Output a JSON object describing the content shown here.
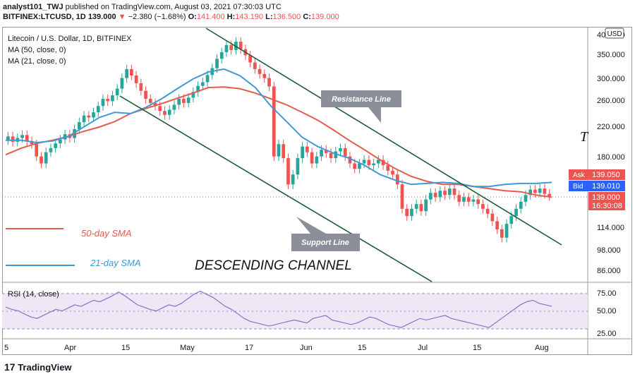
{
  "header": {
    "line1_author": "analyst101_TWJ",
    "line1_text": " published on TradingView.com, August 03, 2021 07:30:03 UTC",
    "symbol": "BITFINEX:LTCUSD, 1D",
    "last": "139.000",
    "change": "−2.380 (−1.68%)",
    "o": "141.400",
    "h": "143.190",
    "l": "136.500",
    "c": "139.000"
  },
  "legend": {
    "title": "Litecoin / U.S. Dollar, 1D, BITFINEX",
    "ma50": "MA (50, close, 0)",
    "ma21": "MA (21, close, 0)"
  },
  "annotations": {
    "resistance": "Resistance Line",
    "support": "Support Line",
    "channel": "DESCENDING CHANNEL",
    "sma50": "50-day SMA",
    "sma21": "21-day SMA",
    "stray": "T"
  },
  "price_axis": {
    "currency": "USD",
    "ticks": [
      "400.000",
      "350.000",
      "300.000",
      "260.000",
      "220.000",
      "180.000",
      "114.000",
      "98.000",
      "86.000"
    ],
    "ask_label": "Ask",
    "ask": "139.050",
    "bid_label": "Bid",
    "bid": "139.010",
    "last": "139.000",
    "countdown": "16:30:08"
  },
  "rsi": {
    "label": "RSI (14, close)",
    "ticks": [
      "75.00",
      "50.00",
      "25.00"
    ]
  },
  "time_axis": [
    "5",
    "Apr",
    "15",
    "May",
    "17",
    "Jun",
    "15",
    "Jul",
    "15",
    "Aug"
  ],
  "footer": {
    "brand": "TradingView"
  },
  "colors": {
    "up": "#26a69a",
    "down": "#ef5350",
    "ma50": "#e55a4e",
    "ma21": "#3d9ad9",
    "channel": "#1e5c3a",
    "rsi": "#8e6fc9",
    "rsi_band": "#ede7f6"
  },
  "chart_data": [
    {
      "type": "candlestick",
      "title": "Litecoin / U.S. Dollar, 1D, BITFINEX",
      "ylim": [
        80,
        400
      ],
      "x_labels": [
        "5",
        "Apr",
        "15",
        "May",
        "17",
        "Jun",
        "15",
        "Jul",
        "15",
        "Aug"
      ],
      "series": [
        {
          "name": "MA (50, close, 0)",
          "values": [
            182,
            190,
            196,
            200,
            205,
            212,
            218,
            226,
            238,
            246,
            254,
            263,
            272,
            282,
            283,
            280,
            272,
            262,
            252,
            240,
            228,
            214,
            200,
            188,
            176,
            166,
            158,
            153,
            150,
            150,
            148,
            146,
            144,
            143,
            140,
            138
          ]
        },
        {
          "name": "MA (21, close, 0)",
          "values": [
            200,
            200,
            197,
            199,
            205,
            218,
            232,
            240,
            238,
            248,
            262,
            280,
            298,
            312,
            318,
            305,
            282,
            250,
            226,
            204,
            192,
            184,
            178,
            170,
            160,
            154,
            150,
            151,
            152,
            151,
            148,
            148,
            150,
            151,
            151,
            152
          ]
        }
      ],
      "candles": [
        {
          "o": 200,
          "c": 205
        },
        {
          "o": 205,
          "c": 198
        },
        {
          "o": 198,
          "c": 203
        },
        {
          "o": 203,
          "c": 207
        },
        {
          "o": 207,
          "c": 199
        },
        {
          "o": 199,
          "c": 195
        },
        {
          "o": 195,
          "c": 180
        },
        {
          "o": 180,
          "c": 172
        },
        {
          "o": 172,
          "c": 185
        },
        {
          "o": 185,
          "c": 190
        },
        {
          "o": 190,
          "c": 196
        },
        {
          "o": 196,
          "c": 201
        },
        {
          "o": 201,
          "c": 208
        },
        {
          "o": 208,
          "c": 203
        },
        {
          "o": 203,
          "c": 215
        },
        {
          "o": 215,
          "c": 225
        },
        {
          "o": 225,
          "c": 235
        },
        {
          "o": 235,
          "c": 232
        },
        {
          "o": 232,
          "c": 240
        },
        {
          "o": 240,
          "c": 250
        },
        {
          "o": 250,
          "c": 262
        },
        {
          "o": 262,
          "c": 258
        },
        {
          "o": 258,
          "c": 268
        },
        {
          "o": 268,
          "c": 280
        },
        {
          "o": 280,
          "c": 300
        },
        {
          "o": 300,
          "c": 318
        },
        {
          "o": 318,
          "c": 305
        },
        {
          "o": 305,
          "c": 290
        },
        {
          "o": 290,
          "c": 276
        },
        {
          "o": 276,
          "c": 262
        },
        {
          "o": 262,
          "c": 255
        },
        {
          "o": 255,
          "c": 250
        },
        {
          "o": 250,
          "c": 242
        },
        {
          "o": 242,
          "c": 236
        },
        {
          "o": 236,
          "c": 244
        },
        {
          "o": 244,
          "c": 252
        },
        {
          "o": 252,
          "c": 262
        },
        {
          "o": 262,
          "c": 255
        },
        {
          "o": 255,
          "c": 264
        },
        {
          "o": 264,
          "c": 274
        },
        {
          "o": 274,
          "c": 285
        },
        {
          "o": 285,
          "c": 292
        },
        {
          "o": 292,
          "c": 306
        },
        {
          "o": 306,
          "c": 320
        },
        {
          "o": 320,
          "c": 340
        },
        {
          "o": 340,
          "c": 355
        },
        {
          "o": 355,
          "c": 372
        },
        {
          "o": 372,
          "c": 360
        },
        {
          "o": 360,
          "c": 380
        },
        {
          "o": 380,
          "c": 362
        },
        {
          "o": 362,
          "c": 348
        },
        {
          "o": 348,
          "c": 332
        },
        {
          "o": 332,
          "c": 318
        },
        {
          "o": 318,
          "c": 308
        },
        {
          "o": 308,
          "c": 300
        },
        {
          "o": 300,
          "c": 284
        },
        {
          "o": 284,
          "c": 180
        },
        {
          "o": 180,
          "c": 195
        },
        {
          "o": 195,
          "c": 178
        },
        {
          "o": 178,
          "c": 150
        },
        {
          "o": 150,
          "c": 160
        },
        {
          "o": 160,
          "c": 178
        },
        {
          "o": 178,
          "c": 192
        },
        {
          "o": 192,
          "c": 185
        },
        {
          "o": 185,
          "c": 172
        },
        {
          "o": 172,
          "c": 180
        },
        {
          "o": 180,
          "c": 188
        },
        {
          "o": 188,
          "c": 184
        },
        {
          "o": 184,
          "c": 178
        },
        {
          "o": 178,
          "c": 186
        },
        {
          "o": 186,
          "c": 190
        },
        {
          "o": 190,
          "c": 180
        },
        {
          "o": 180,
          "c": 172
        },
        {
          "o": 172,
          "c": 166
        },
        {
          "o": 166,
          "c": 172
        },
        {
          "o": 172,
          "c": 176
        },
        {
          "o": 176,
          "c": 170
        },
        {
          "o": 170,
          "c": 172
        },
        {
          "o": 172,
          "c": 176
        },
        {
          "o": 176,
          "c": 170
        },
        {
          "o": 170,
          "c": 164
        },
        {
          "o": 164,
          "c": 160
        },
        {
          "o": 160,
          "c": 150
        },
        {
          "o": 150,
          "c": 128
        },
        {
          "o": 128,
          "c": 122
        },
        {
          "o": 122,
          "c": 128
        },
        {
          "o": 128,
          "c": 132
        },
        {
          "o": 132,
          "c": 126
        },
        {
          "o": 126,
          "c": 136
        },
        {
          "o": 136,
          "c": 142
        },
        {
          "o": 142,
          "c": 138
        },
        {
          "o": 138,
          "c": 144
        },
        {
          "o": 144,
          "c": 140
        },
        {
          "o": 140,
          "c": 146
        },
        {
          "o": 146,
          "c": 140
        },
        {
          "o": 140,
          "c": 134
        },
        {
          "o": 134,
          "c": 138
        },
        {
          "o": 138,
          "c": 134
        },
        {
          "o": 134,
          "c": 136
        },
        {
          "o": 136,
          "c": 132
        },
        {
          "o": 132,
          "c": 128
        },
        {
          "o": 128,
          "c": 124
        },
        {
          "o": 124,
          "c": 118
        },
        {
          "o": 118,
          "c": 112
        },
        {
          "o": 112,
          "c": 106
        },
        {
          "o": 106,
          "c": 116
        },
        {
          "o": 116,
          "c": 122
        },
        {
          "o": 122,
          "c": 128
        },
        {
          "o": 128,
          "c": 134
        },
        {
          "o": 134,
          "c": 140
        },
        {
          "o": 140,
          "c": 145
        },
        {
          "o": 145,
          "c": 142
        },
        {
          "o": 142,
          "c": 146
        },
        {
          "o": 146,
          "c": 141
        },
        {
          "o": 141,
          "c": 139
        }
      ]
    },
    {
      "type": "line",
      "title": "RSI (14, close)",
      "ylim": [
        15,
        85
      ],
      "series": [
        {
          "name": "RSI (14, close)",
          "values": [
            55,
            52,
            50,
            46,
            42,
            40,
            44,
            48,
            52,
            50,
            54,
            58,
            56,
            60,
            64,
            62,
            66,
            70,
            75,
            70,
            64,
            58,
            55,
            52,
            50,
            54,
            58,
            56,
            60,
            66,
            72,
            76,
            72,
            68,
            62,
            56,
            52,
            46,
            40,
            36,
            34,
            32,
            30,
            32,
            34,
            36,
            38,
            36,
            34,
            40,
            42,
            44,
            38,
            36,
            34,
            32,
            34,
            38,
            42,
            40,
            36,
            32,
            30,
            28,
            32,
            36,
            40,
            38,
            40,
            42,
            44,
            40,
            38,
            36,
            34,
            32,
            30,
            28,
            34,
            40,
            46,
            52,
            58,
            62,
            64,
            60,
            58,
            56
          ]
        }
      ]
    }
  ]
}
